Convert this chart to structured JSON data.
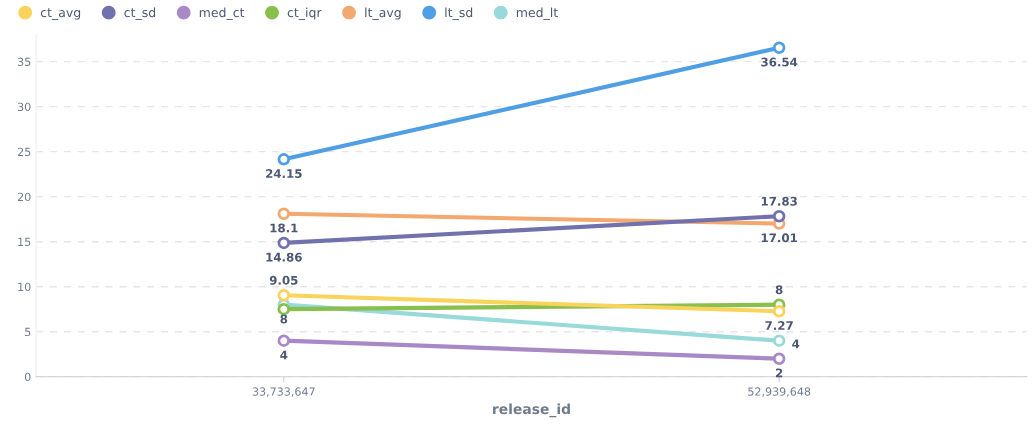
{
  "chart_data": {
    "type": "line",
    "xlabel": "release_id",
    "categories": [
      "33,733,647",
      "52,939,648"
    ],
    "series": [
      {
        "name": "ct_avg",
        "color": "#f9d45c",
        "values": [
          9.05,
          7.27
        ],
        "value_labels": [
          "9.05",
          "7.27"
        ]
      },
      {
        "name": "ct_sd",
        "color": "#7172ad",
        "values": [
          14.86,
          17.83
        ],
        "value_labels": [
          "14.86",
          "17.83"
        ]
      },
      {
        "name": "med_ct",
        "color": "#a989c5",
        "values": [
          4,
          2
        ],
        "value_labels": [
          "4",
          "2"
        ]
      },
      {
        "name": "ct_iqr",
        "color": "#88bf4d",
        "values": [
          7.5,
          8
        ],
        "value_labels": [
          null,
          "8"
        ]
      },
      {
        "name": "lt_avg",
        "color": "#f2a86f",
        "values": [
          18.1,
          17.01
        ],
        "value_labels": [
          "18.1",
          "17.01"
        ]
      },
      {
        "name": "lt_sd",
        "color": "#509ee3",
        "values": [
          24.15,
          36.54
        ],
        "value_labels": [
          "24.15",
          "36.54"
        ]
      },
      {
        "name": "med_lt",
        "color": "#98d9d9",
        "values": [
          8,
          4
        ],
        "value_labels": [
          "8",
          "4"
        ]
      }
    ],
    "ylim": [
      0,
      38
    ],
    "yticks": [
      0,
      5,
      10,
      15,
      20,
      25,
      30,
      35
    ],
    "grid": "y",
    "legend": "top left",
    "marker": "circle",
    "line_style": "solid"
  }
}
